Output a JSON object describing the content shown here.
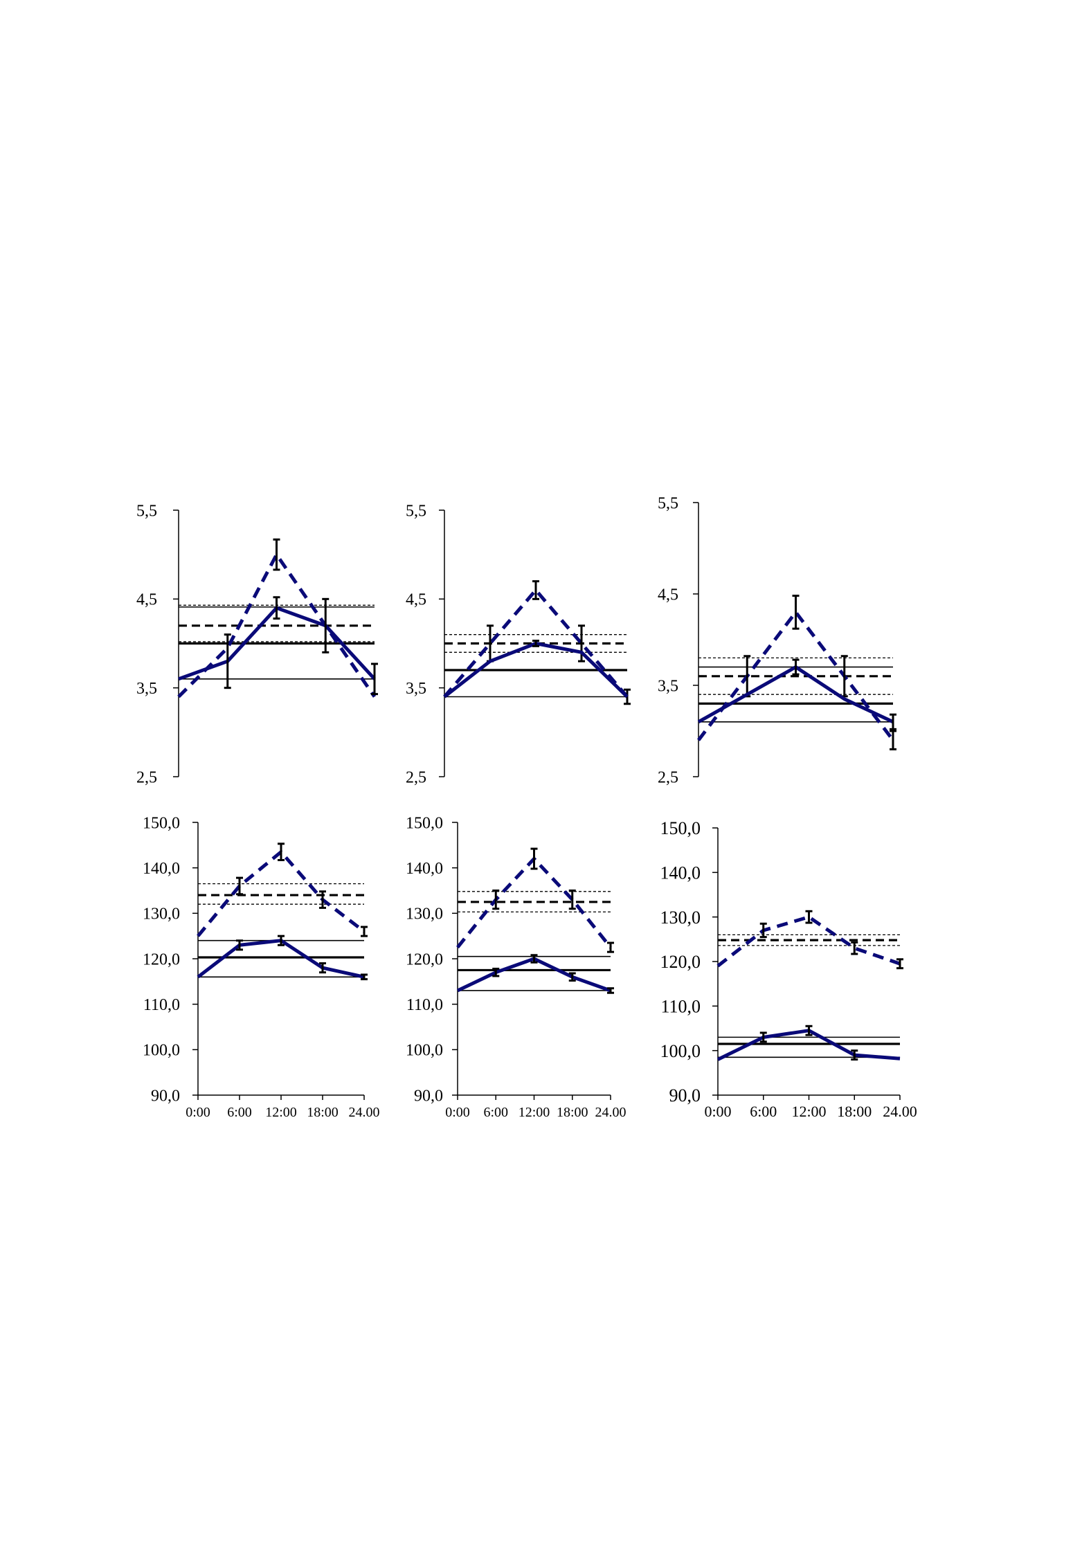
{
  "colors": {
    "series": "#0a0a78",
    "reference": "#000000",
    "error_bar": "#000000",
    "axis": "#000000"
  },
  "chart_data": [
    {
      "type": "line",
      "panel": "top-left",
      "y_ticks": [
        "5,5",
        "4,5",
        "3,5",
        "2,5"
      ],
      "ylim": [
        2.5,
        5.5
      ],
      "x_ticks": [],
      "xlim": [
        0,
        24
      ],
      "series": [
        {
          "style": "dashed",
          "x": [
            0,
            6,
            12,
            18,
            24
          ],
          "y": [
            3.4,
            3.95,
            5.0,
            4.2,
            3.4
          ],
          "err": [
            0,
            0,
            0.17,
            0,
            0
          ]
        },
        {
          "style": "solid",
          "x": [
            0,
            6,
            12,
            18,
            24
          ],
          "y": [
            3.6,
            3.8,
            4.4,
            4.2,
            3.6
          ],
          "err": [
            0,
            0.3,
            0.12,
            0.3,
            0.17
          ]
        }
      ],
      "reference_lines": [
        {
          "style": "thin-dotted",
          "y": 4.43
        },
        {
          "style": "thin-dotted",
          "y": 4.02
        },
        {
          "style": "bold-dashed",
          "y": 4.2
        },
        {
          "style": "thin-solid",
          "y": 4.41
        },
        {
          "style": "bold-solid",
          "y": 4.0
        },
        {
          "style": "thin-solid",
          "y": 3.6
        }
      ]
    },
    {
      "type": "line",
      "panel": "top-middle",
      "y_ticks": [
        "5,5",
        "4,5",
        "3,5",
        "2,5"
      ],
      "ylim": [
        2.5,
        5.5
      ],
      "x_ticks": [],
      "xlim": [
        0,
        24
      ],
      "series": [
        {
          "style": "dashed",
          "x": [
            0,
            6,
            12,
            18,
            24
          ],
          "y": [
            3.4,
            4.0,
            4.6,
            4.0,
            3.4
          ],
          "err": [
            0,
            0.2,
            0.1,
            0.2,
            0.08
          ]
        },
        {
          "style": "solid",
          "x": [
            0,
            6,
            12,
            18,
            24
          ],
          "y": [
            3.4,
            3.8,
            4.0,
            3.9,
            3.4
          ],
          "err": [
            0,
            0,
            0.03,
            0,
            0
          ]
        }
      ],
      "reference_lines": [
        {
          "style": "thin-dotted",
          "y": 4.1
        },
        {
          "style": "thin-dotted",
          "y": 3.9
        },
        {
          "style": "bold-dashed",
          "y": 4.0
        },
        {
          "style": "bold-solid",
          "y": 3.7
        },
        {
          "style": "thin-solid",
          "y": 3.4
        }
      ]
    },
    {
      "type": "line",
      "panel": "top-right",
      "y_ticks": [
        "5,5",
        "4,5",
        "3,5",
        "2,5"
      ],
      "ylim": [
        2.5,
        5.5
      ],
      "x_ticks": [],
      "xlim": [
        0,
        24
      ],
      "series": [
        {
          "style": "dashed",
          "x": [
            0,
            6,
            12,
            18,
            24
          ],
          "y": [
            2.9,
            3.6,
            4.3,
            3.6,
            2.9
          ],
          "err": [
            0,
            0.22,
            0.18,
            0.22,
            0.1
          ]
        },
        {
          "style": "solid",
          "x": [
            0,
            6,
            12,
            18,
            24
          ],
          "y": [
            3.1,
            3.4,
            3.7,
            3.35,
            3.1
          ],
          "err": [
            0,
            0,
            0.08,
            0,
            0.08
          ]
        }
      ],
      "reference_lines": [
        {
          "style": "thin-dotted",
          "y": 3.8
        },
        {
          "style": "thin-dotted",
          "y": 3.4
        },
        {
          "style": "bold-dashed",
          "y": 3.6
        },
        {
          "style": "thin-solid",
          "y": 3.7
        },
        {
          "style": "bold-solid",
          "y": 3.3
        },
        {
          "style": "thin-solid",
          "y": 3.1
        }
      ]
    },
    {
      "type": "line",
      "panel": "bottom-left",
      "y_ticks": [
        "150,0",
        "140,0",
        "130,0",
        "120,0",
        "110,0",
        "100,0",
        "90,0"
      ],
      "ylim": [
        90,
        150
      ],
      "x_ticks": [
        "0:00",
        "6:00",
        "12:00",
        "18:00",
        "24.00"
      ],
      "xlim": [
        0,
        24
      ],
      "series": [
        {
          "style": "dashed",
          "x": [
            0,
            6,
            12,
            18,
            24
          ],
          "y": [
            125,
            136,
            143.5,
            133,
            126
          ],
          "err": [
            0,
            1.8,
            1.8,
            1.8,
            1
          ]
        },
        {
          "style": "solid",
          "x": [
            0,
            6,
            12,
            18,
            24
          ],
          "y": [
            116,
            123,
            124,
            118,
            116
          ],
          "err": [
            0,
            1,
            1,
            1,
            0.5
          ]
        }
      ],
      "reference_lines": [
        {
          "style": "thin-dotted",
          "y": 136.5
        },
        {
          "style": "thin-dotted",
          "y": 132
        },
        {
          "style": "bold-dashed",
          "y": 134
        },
        {
          "style": "thin-solid",
          "y": 124
        },
        {
          "style": "bold-solid",
          "y": 120.3
        },
        {
          "style": "thin-solid",
          "y": 116
        }
      ]
    },
    {
      "type": "line",
      "panel": "bottom-middle",
      "y_ticks": [
        "150,0",
        "140,0",
        "130,0",
        "120,0",
        "110,0",
        "100,0",
        "90,0"
      ],
      "ylim": [
        90,
        150
      ],
      "x_ticks": [
        "0:00",
        "6:00",
        "12:00",
        "18:00",
        "24.00"
      ],
      "xlim": [
        0,
        24
      ],
      "series": [
        {
          "style": "dashed",
          "x": [
            0,
            6,
            12,
            18,
            24
          ],
          "y": [
            122.5,
            133,
            142,
            133,
            122.5
          ],
          "err": [
            0,
            2,
            2.2,
            2,
            1
          ]
        },
        {
          "style": "solid",
          "x": [
            0,
            6,
            12,
            18,
            24
          ],
          "y": [
            113,
            117,
            120,
            116,
            113
          ],
          "err": [
            0,
            0.8,
            0.8,
            0.8,
            0.5
          ]
        }
      ],
      "reference_lines": [
        {
          "style": "thin-dotted",
          "y": 134.8
        },
        {
          "style": "thin-dotted",
          "y": 130.3
        },
        {
          "style": "bold-dashed",
          "y": 132.5
        },
        {
          "style": "thin-solid",
          "y": 120.5
        },
        {
          "style": "bold-solid",
          "y": 117.5
        },
        {
          "style": "thin-solid",
          "y": 113
        }
      ]
    },
    {
      "type": "line",
      "panel": "bottom-right",
      "y_ticks": [
        "150,0",
        "140,0",
        "130,0",
        "120,0",
        "110,0",
        "100,0",
        "90,0"
      ],
      "ylim": [
        90,
        150
      ],
      "x_ticks": [
        "0:00",
        "6:00",
        "12:00",
        "18:00",
        "24.00"
      ],
      "xlim": [
        0,
        24
      ],
      "series": [
        {
          "style": "dashed",
          "x": [
            0,
            6,
            12,
            18,
            24
          ],
          "y": [
            119,
            127,
            130,
            123,
            119.5
          ],
          "err": [
            0,
            1.5,
            1.3,
            1.3,
            1
          ]
        },
        {
          "style": "solid",
          "x": [
            0,
            6,
            12,
            18,
            24
          ],
          "y": [
            98,
            103,
            104.5,
            99,
            98.2
          ],
          "err": [
            0,
            1,
            1,
            1,
            0
          ]
        }
      ],
      "reference_lines": [
        {
          "style": "thin-dotted",
          "y": 126
        },
        {
          "style": "thin-dotted",
          "y": 123.6
        },
        {
          "style": "bold-dashed",
          "y": 124.8
        },
        {
          "style": "thin-solid",
          "y": 103
        },
        {
          "style": "bold-solid",
          "y": 101.5
        },
        {
          "style": "thin-solid",
          "y": 98.5
        }
      ]
    }
  ]
}
